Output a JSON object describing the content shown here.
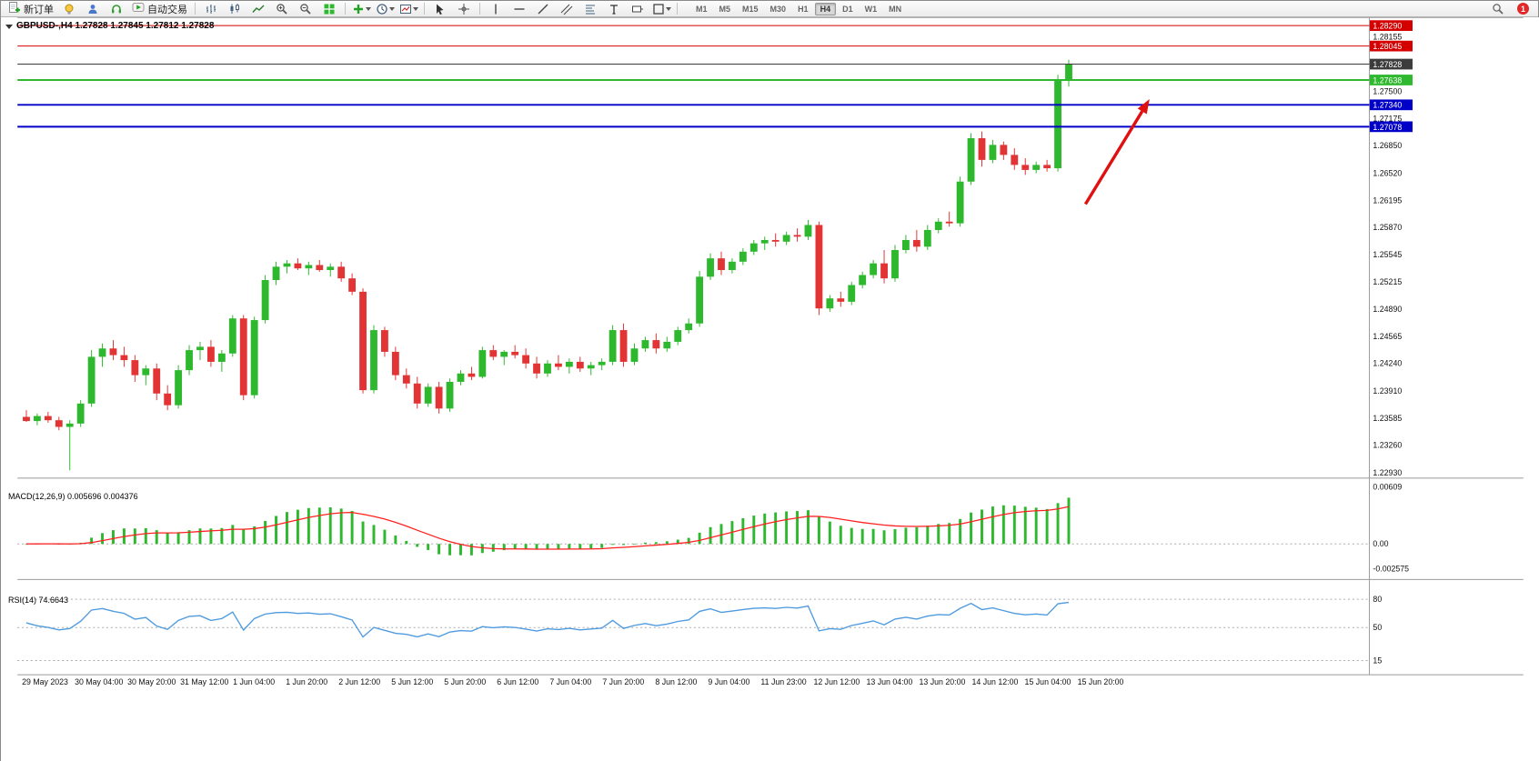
{
  "toolbar": {
    "new_order_label": "新订单",
    "auto_trading_label": "自动交易",
    "timeframes": [
      "M1",
      "M5",
      "M15",
      "M30",
      "H1",
      "H4",
      "D1",
      "W1",
      "MN"
    ],
    "active_timeframe": "H4",
    "notification_count": "1"
  },
  "chart_data": {
    "type": "candlestick",
    "symbol": "GBPUSD",
    "period": "H4",
    "title": "GBPUSD-,H4 1.27828 1.27845 1.27812 1.27828",
    "current_bar": {
      "open": "1.27828",
      "high": "1.27845",
      "low": "1.27812",
      "close": "1.27828"
    },
    "price_axis": [
      "1.28155",
      "1.27500",
      "1.27175",
      "1.26850",
      "1.26520",
      "1.26195",
      "1.25870",
      "1.25545",
      "1.25215",
      "1.24890",
      "1.24565",
      "1.24240",
      "1.23910",
      "1.23585",
      "1.23260",
      "1.22930"
    ],
    "levels": [
      {
        "price": 1.2829,
        "label": "1.28290",
        "type": "resistance-line",
        "color": "#d40000",
        "width": 1
      },
      {
        "price": 1.28045,
        "label": "1.28045",
        "type": "resistance-line",
        "color": "#d40000",
        "width": 1
      },
      {
        "price": 1.27828,
        "label": "1.27828",
        "type": "bid-line",
        "color": "#3c3c3c",
        "width": 1
      },
      {
        "price": 1.27638,
        "label": "1.27638",
        "type": "level-line",
        "color": "#2db82d",
        "width": 2
      },
      {
        "price": 1.2734,
        "label": "1.27340",
        "type": "support-line",
        "color": "#0000c8",
        "width": 2
      },
      {
        "price": 1.27078,
        "label": "1.27078",
        "type": "support-line",
        "color": "#0000c8",
        "width": 2
      }
    ],
    "candles": [
      [
        1.236,
        1.2368,
        1.2354,
        1.2355
      ],
      [
        1.2355,
        1.2364,
        1.235,
        1.2361
      ],
      [
        1.2361,
        1.2366,
        1.2353,
        1.2356
      ],
      [
        1.2356,
        1.236,
        1.2344,
        1.2348
      ],
      [
        1.2348,
        1.2356,
        1.2296,
        1.2352
      ],
      [
        1.2352,
        1.238,
        1.2348,
        1.2376
      ],
      [
        1.2376,
        1.244,
        1.2372,
        1.2432
      ],
      [
        1.2432,
        1.2448,
        1.242,
        1.2442
      ],
      [
        1.2442,
        1.2452,
        1.2428,
        1.2434
      ],
      [
        1.2434,
        1.2444,
        1.242,
        1.2428
      ],
      [
        1.2428,
        1.2434,
        1.2402,
        1.241
      ],
      [
        1.241,
        1.2422,
        1.2398,
        1.2418
      ],
      [
        1.2418,
        1.2424,
        1.238,
        1.2388
      ],
      [
        1.2388,
        1.2398,
        1.2368,
        1.2374
      ],
      [
        1.2374,
        1.2422,
        1.237,
        1.2416
      ],
      [
        1.2416,
        1.2446,
        1.241,
        1.244
      ],
      [
        1.244,
        1.245,
        1.2428,
        1.2444
      ],
      [
        1.2444,
        1.2452,
        1.242,
        1.2426
      ],
      [
        1.2426,
        1.244,
        1.2414,
        1.2436
      ],
      [
        1.2436,
        1.2482,
        1.2432,
        1.2478
      ],
      [
        1.2478,
        1.2482,
        1.238,
        1.2386
      ],
      [
        1.2386,
        1.248,
        1.2382,
        1.2476
      ],
      [
        1.2476,
        1.253,
        1.2472,
        1.2524
      ],
      [
        1.2524,
        1.2546,
        1.2518,
        1.254
      ],
      [
        1.254,
        1.2548,
        1.2532,
        1.2544
      ],
      [
        1.2544,
        1.255,
        1.2536,
        1.2538
      ],
      [
        1.2538,
        1.2546,
        1.253,
        1.2542
      ],
      [
        1.2542,
        1.2548,
        1.2534,
        1.2536
      ],
      [
        1.2536,
        1.2544,
        1.2528,
        1.254
      ],
      [
        1.254,
        1.2546,
        1.2522,
        1.2526
      ],
      [
        1.2526,
        1.2532,
        1.2506,
        1.251
      ],
      [
        1.251,
        1.2514,
        1.2388,
        1.2392
      ],
      [
        1.2392,
        1.247,
        1.2388,
        1.2464
      ],
      [
        1.2464,
        1.2468,
        1.2432,
        1.2438
      ],
      [
        1.2438,
        1.2444,
        1.2404,
        1.241
      ],
      [
        1.241,
        1.2418,
        1.2394,
        1.24
      ],
      [
        1.24,
        1.2408,
        1.237,
        1.2376
      ],
      [
        1.2376,
        1.24,
        1.2372,
        1.2396
      ],
      [
        1.2396,
        1.2402,
        1.2364,
        1.237
      ],
      [
        1.237,
        1.2406,
        1.2366,
        1.2402
      ],
      [
        1.2402,
        1.2416,
        1.2398,
        1.2412
      ],
      [
        1.2412,
        1.242,
        1.2404,
        1.2408
      ],
      [
        1.2408,
        1.2444,
        1.2406,
        1.244
      ],
      [
        1.244,
        1.2446,
        1.2428,
        1.2432
      ],
      [
        1.2432,
        1.244,
        1.2422,
        1.2438
      ],
      [
        1.2438,
        1.2446,
        1.243,
        1.2434
      ],
      [
        1.2434,
        1.2442,
        1.2418,
        1.2424
      ],
      [
        1.2424,
        1.2432,
        1.2406,
        1.2412
      ],
      [
        1.2412,
        1.2428,
        1.2408,
        1.2424
      ],
      [
        1.2424,
        1.2434,
        1.2416,
        1.242
      ],
      [
        1.242,
        1.243,
        1.2412,
        1.2426
      ],
      [
        1.2426,
        1.2432,
        1.2414,
        1.2418
      ],
      [
        1.2418,
        1.2426,
        1.241,
        1.2422
      ],
      [
        1.2422,
        1.243,
        1.2416,
        1.2426
      ],
      [
        1.2426,
        1.247,
        1.2422,
        1.2464
      ],
      [
        1.2464,
        1.2472,
        1.242,
        1.2426
      ],
      [
        1.2426,
        1.2448,
        1.2422,
        1.2442
      ],
      [
        1.2442,
        1.2456,
        1.2438,
        1.2452
      ],
      [
        1.2452,
        1.246,
        1.2436,
        1.2442
      ],
      [
        1.2442,
        1.2456,
        1.2438,
        1.245
      ],
      [
        1.245,
        1.2468,
        1.2446,
        1.2464
      ],
      [
        1.2464,
        1.2478,
        1.246,
        1.2472
      ],
      [
        1.2472,
        1.2535,
        1.2468,
        1.2528
      ],
      [
        1.2528,
        1.2556,
        1.2524,
        1.255
      ],
      [
        1.255,
        1.2558,
        1.253,
        1.2536
      ],
      [
        1.2536,
        1.255,
        1.2532,
        1.2546
      ],
      [
        1.2546,
        1.2562,
        1.2542,
        1.2558
      ],
      [
        1.2558,
        1.2572,
        1.2554,
        1.2568
      ],
      [
        1.2568,
        1.2576,
        1.256,
        1.2572
      ],
      [
        1.2572,
        1.258,
        1.2564,
        1.257
      ],
      [
        1.257,
        1.2582,
        1.2566,
        1.2578
      ],
      [
        1.2578,
        1.2586,
        1.257,
        1.2576
      ],
      [
        1.2576,
        1.2596,
        1.2572,
        1.259
      ],
      [
        1.259,
        1.2594,
        1.2482,
        1.249
      ],
      [
        1.249,
        1.2506,
        1.2486,
        1.2502
      ],
      [
        1.2502,
        1.251,
        1.2492,
        1.2498
      ],
      [
        1.2498,
        1.2522,
        1.2494,
        1.2518
      ],
      [
        1.2518,
        1.2534,
        1.2514,
        1.253
      ],
      [
        1.253,
        1.2548,
        1.2526,
        1.2544
      ],
      [
        1.2544,
        1.256,
        1.252,
        1.2526
      ],
      [
        1.2526,
        1.2566,
        1.2522,
        1.256
      ],
      [
        1.256,
        1.2578,
        1.2556,
        1.2572
      ],
      [
        1.2572,
        1.2584,
        1.2558,
        1.2564
      ],
      [
        1.2564,
        1.259,
        1.256,
        1.2584
      ],
      [
        1.2584,
        1.2598,
        1.258,
        1.2594
      ],
      [
        1.2594,
        1.2606,
        1.2588,
        1.2592
      ],
      [
        1.2592,
        1.2648,
        1.2588,
        1.2642
      ],
      [
        1.2642,
        1.27,
        1.2638,
        1.2694
      ],
      [
        1.2694,
        1.2702,
        1.266,
        1.2668
      ],
      [
        1.2668,
        1.2692,
        1.2664,
        1.2686
      ],
      [
        1.2686,
        1.269,
        1.2668,
        1.2674
      ],
      [
        1.2674,
        1.2682,
        1.2656,
        1.2662
      ],
      [
        1.2662,
        1.267,
        1.265,
        1.2656
      ],
      [
        1.2656,
        1.2666,
        1.2652,
        1.2662
      ],
      [
        1.2662,
        1.2668,
        1.2654,
        1.2658
      ],
      [
        1.2658,
        1.277,
        1.2654,
        1.2764
      ],
      [
        1.2764,
        1.2788,
        1.2756,
        1.27828
      ]
    ],
    "macd": {
      "label": "MACD(12,26,9) 0.005696 0.004376",
      "main_value": "0.005696",
      "signal_value": "0.004376",
      "axis_max": "0.00609",
      "axis_zero": "0.00",
      "axis_min": "-0.002575",
      "params": [
        12,
        26,
        9
      ]
    },
    "rsi": {
      "label": "RSI(14) 74.6643",
      "value": "74.6643",
      "period": 14,
      "level_labels": [
        "80",
        "50",
        "15"
      ]
    },
    "time_axis": [
      "29 May 2023",
      "30 May 04:00",
      "30 May 20:00",
      "31 May 12:00",
      "1 Jun 04:00",
      "1 Jun 20:00",
      "2 Jun 12:00",
      "5 Jun 12:00",
      "5 Jun 20:00",
      "6 Jun 12:00",
      "7 Jun 04:00",
      "7 Jun 20:00",
      "8 Jun 12:00",
      "9 Jun 04:00",
      "11 Jun 23:00",
      "12 Jun 12:00",
      "13 Jun 04:00",
      "13 Jun 20:00",
      "14 Jun 12:00",
      "15 Jun 04:00",
      "15 Jun 20:00"
    ],
    "colors": {
      "bull": "#2db82d",
      "bear": "#e23434",
      "macd_hist": "#2db82d",
      "macd_signal": "#ff2020",
      "rsi_line": "#4f9be0",
      "arrow": "#e01010"
    }
  }
}
